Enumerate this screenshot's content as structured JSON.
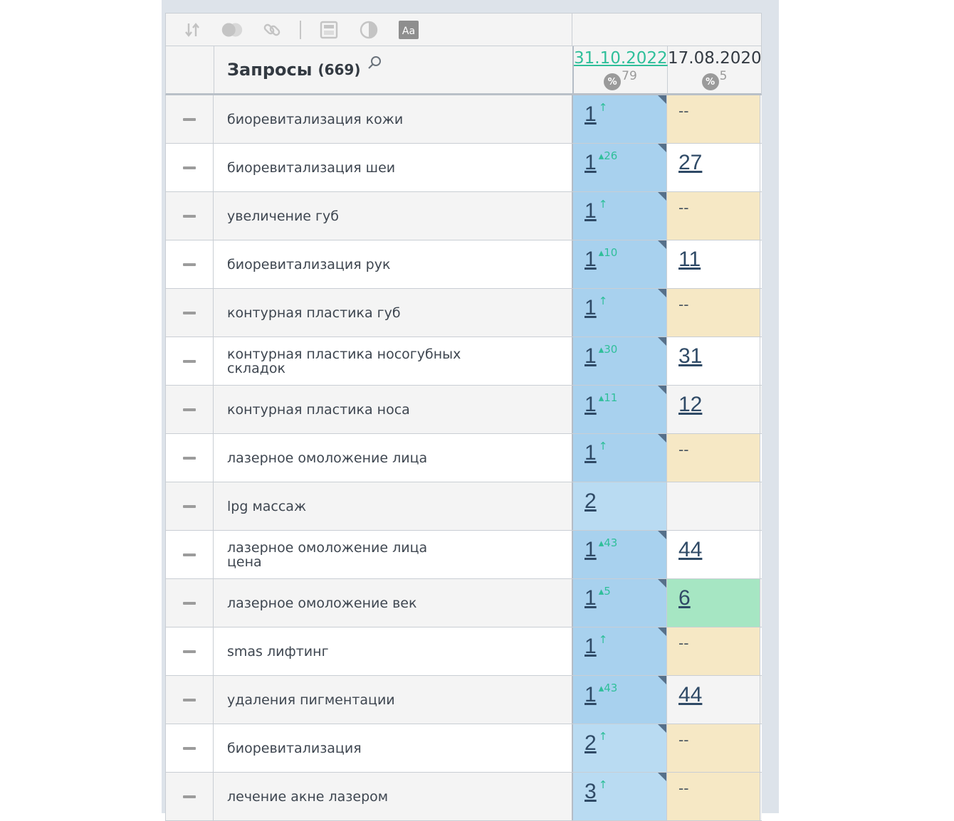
{
  "header": {
    "title": "Запросы",
    "count": "(669)",
    "dates": [
      {
        "label": "31.10.2022",
        "pct": "79"
      },
      {
        "label": "17.08.2020",
        "pct": "5"
      }
    ]
  },
  "toolbar": {
    "icons": [
      "sort-icon",
      "toggle-icon",
      "link-icon",
      "calculator-icon",
      "contrast-icon",
      "font-icon"
    ],
    "font_label": "Aa",
    "pct_symbol": "%"
  },
  "rows": [
    {
      "query": "биоревитализация кожи",
      "p1": "1",
      "d1": "↑",
      "c1": "blue",
      "p2": "--",
      "d2": "",
      "c2": "beige"
    },
    {
      "query": "биоревитализация шеи",
      "p1": "1",
      "d1": "▴26",
      "c1": "blue",
      "p2": "27",
      "d2": "",
      "c2": "plain"
    },
    {
      "query": "увеличение губ",
      "p1": "1",
      "d1": "↑",
      "c1": "blue",
      "p2": "--",
      "d2": "",
      "c2": "beige"
    },
    {
      "query": "биоревитализация рук",
      "p1": "1",
      "d1": "▴10",
      "c1": "blue",
      "p2": "11",
      "d2": "",
      "c2": "plain"
    },
    {
      "query": "контурная пластика губ",
      "p1": "1",
      "d1": "↑",
      "c1": "blue",
      "p2": "--",
      "d2": "",
      "c2": "beige"
    },
    {
      "query": "контурная пластика носогубных складок",
      "p1": "1",
      "d1": "▴30",
      "c1": "blue",
      "p2": "31",
      "d2": "",
      "c2": "plain"
    },
    {
      "query": "контурная пластика носа",
      "p1": "1",
      "d1": "▴11",
      "c1": "blue",
      "p2": "12",
      "d2": "",
      "c2": "plain"
    },
    {
      "query": "лазерное омоложение лица",
      "p1": "1",
      "d1": "↑",
      "c1": "blue",
      "p2": "--",
      "d2": "",
      "c2": "beige"
    },
    {
      "query": "lpg массаж",
      "p1": "2",
      "d1": "",
      "c1": "lightblue",
      "p2": "",
      "d2": "",
      "c2": "plain"
    },
    {
      "query": "лазерное омоложение лица цена",
      "p1": "1",
      "d1": "▴43",
      "c1": "blue",
      "p2": "44",
      "d2": "",
      "c2": "plain"
    },
    {
      "query": "лазерное омоложение век",
      "p1": "1",
      "d1": "▴5",
      "c1": "blue",
      "p2": "6",
      "d2": "",
      "c2": "green"
    },
    {
      "query": "smas лифтинг",
      "p1": "1",
      "d1": "↑",
      "c1": "blue",
      "p2": "--",
      "d2": "",
      "c2": "beige"
    },
    {
      "query": "удаления пигментации",
      "p1": "1",
      "d1": "▴43",
      "c1": "blue",
      "p2": "44",
      "d2": "",
      "c2": "plain"
    },
    {
      "query": "биоревитализация",
      "p1": "2",
      "d1": "↑",
      "c1": "lightblue",
      "p2": "--",
      "d2": "",
      "c2": "beige"
    },
    {
      "query": "лечение акне лазером",
      "p1": "3",
      "d1": "↑",
      "c1": "lightblue",
      "p2": "--",
      "d2": "",
      "c2": "beige"
    }
  ]
}
